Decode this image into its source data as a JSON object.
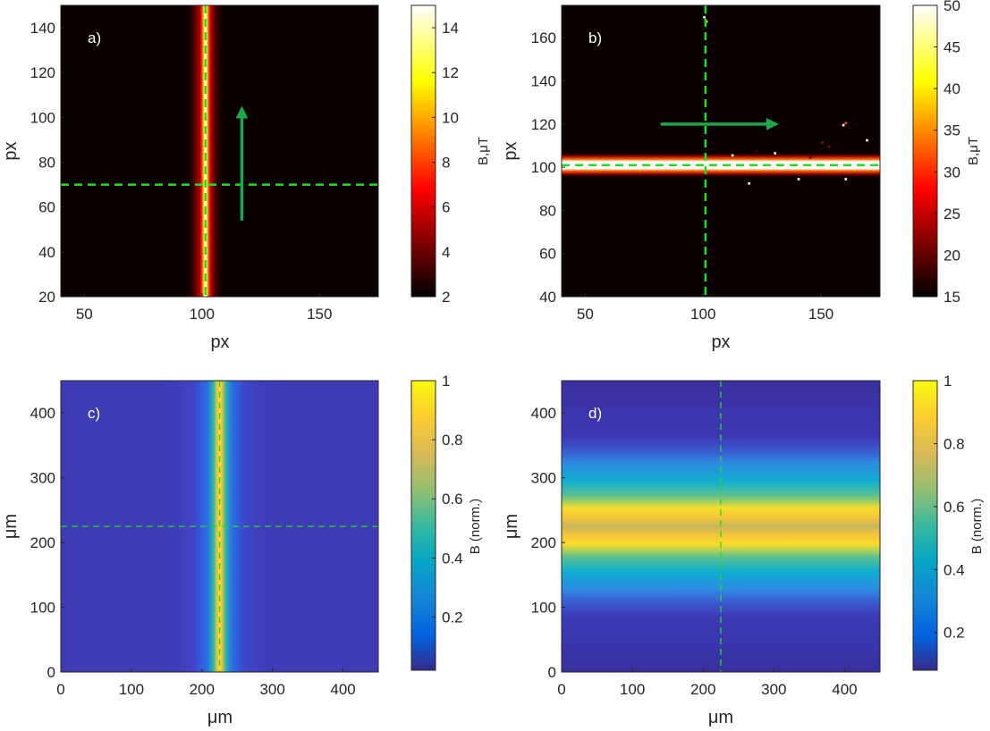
{
  "chart_data": [
    {
      "id": "a",
      "type": "heatmap",
      "panel_label": "a)",
      "colormap": "hot",
      "xlabel": "px",
      "ylabel": "px",
      "xlim": [
        40,
        175
      ],
      "ylim": [
        20,
        150
      ],
      "xticks": [
        50,
        100,
        150
      ],
      "yticks": [
        20,
        40,
        60,
        80,
        100,
        120,
        140
      ],
      "stripe": {
        "orientation": "vertical",
        "center": 101.5,
        "core_halfwidth": 2,
        "halo_halfwidth": 9
      },
      "crosshair": {
        "x": 101.5,
        "y": 70
      },
      "arrow": {
        "from": [
          117,
          54
        ],
        "to": [
          117,
          104
        ],
        "direction": "up"
      },
      "colorbar": {
        "label": "B,μT",
        "min": 2,
        "max": 15,
        "ticks": [
          2,
          4,
          6,
          8,
          10,
          12,
          14
        ]
      }
    },
    {
      "id": "b",
      "type": "heatmap",
      "panel_label": "b)",
      "colormap": "hot",
      "xlabel": "px",
      "ylabel": "px",
      "xlim": [
        40,
        175
      ],
      "ylim": [
        40,
        175
      ],
      "xticks": [
        50,
        100,
        150
      ],
      "yticks": [
        40,
        60,
        80,
        100,
        120,
        140,
        160
      ],
      "stripe": {
        "orientation": "horizontal",
        "center": 101,
        "core_halfwidth": 3,
        "halo_halfwidth": 6
      },
      "crosshair": {
        "x": 101,
        "y": 101
      },
      "arrow": {
        "from": [
          82,
          120
        ],
        "to": [
          131,
          120
        ],
        "direction": "right"
      },
      "colorbar": {
        "label": "B,μT",
        "min": 15,
        "max": 50,
        "ticks": [
          15,
          20,
          25,
          30,
          35,
          40,
          45,
          50
        ]
      }
    },
    {
      "id": "c",
      "type": "heatmap",
      "panel_label": "c)",
      "colormap": "parula",
      "xlabel": "μm",
      "ylabel": "μm",
      "xlim": [
        0,
        450
      ],
      "ylim": [
        0,
        450
      ],
      "xticks": [
        0,
        100,
        200,
        300,
        400
      ],
      "yticks": [
        0,
        100,
        200,
        300,
        400
      ],
      "stripe": {
        "orientation": "vertical",
        "center": 225,
        "core_halfwidth": 12,
        "halo_halfwidth": 90
      },
      "crosshair": {
        "x": 225,
        "y": 225
      },
      "colorbar": {
        "label": "B (norm.)",
        "min": 0.02,
        "max": 1,
        "ticks": [
          0.2,
          0.4,
          0.6,
          0.8,
          1
        ],
        "tick_labels": [
          "0.2",
          "0.4",
          "0.6",
          "0.8",
          "1"
        ]
      }
    },
    {
      "id": "d",
      "type": "heatmap",
      "panel_label": "d)",
      "colormap": "parula",
      "xlabel": "μm",
      "ylabel": "μm",
      "xlim": [
        0,
        450
      ],
      "ylim": [
        0,
        450
      ],
      "xticks": [
        0,
        100,
        200,
        300,
        400
      ],
      "yticks": [
        0,
        100,
        200,
        300,
        400
      ],
      "stripe": {
        "orientation": "horizontal",
        "center": 225,
        "core_halfwidth": 30,
        "halo_halfwidth": 140
      },
      "crosshair": {
        "x": 225,
        "y": null
      },
      "colorbar": {
        "label": "B (norm.)",
        "min": 0.08,
        "max": 1,
        "ticks": [
          0.2,
          0.4,
          0.6,
          0.8,
          1
        ],
        "tick_labels": [
          "0.2",
          "0.4",
          "0.6",
          "0.8",
          "1"
        ]
      }
    }
  ],
  "colors": {
    "crosshair": "#22dd22",
    "arrow": "#1aa84a",
    "axis": "#262626",
    "panel_tag": "#ffffff"
  }
}
